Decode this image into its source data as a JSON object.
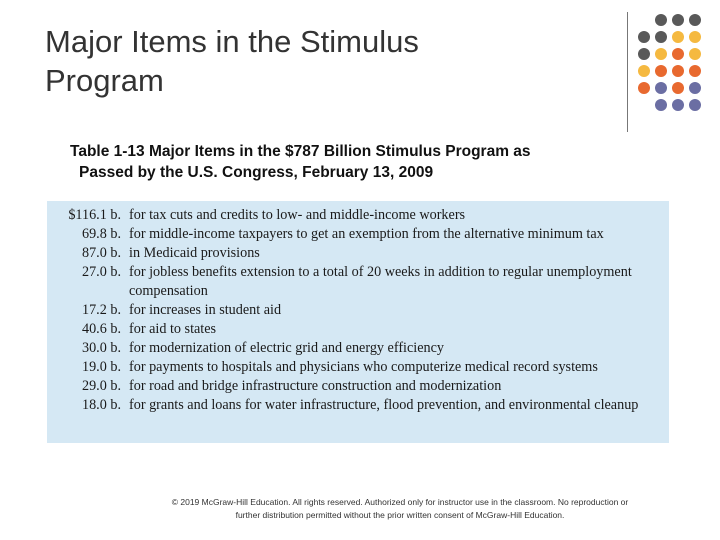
{
  "slide": {
    "title_line1": "Major Items in the Stimulus",
    "title_line2": "Program"
  },
  "decor": {
    "dot_colors": {
      "gray": "#595959",
      "yellow": "#f5b940",
      "orange": "#e8692f",
      "purple": "#6b6ea3"
    }
  },
  "table": {
    "caption_line1": "Table 1-13 Major Items in the $787 Billion Stimulus Program as",
    "caption_line2": "Passed by the U.S. Congress, February 13, 2009",
    "rows": [
      {
        "amount": "$116.1 b.",
        "description": "for tax cuts and credits to low- and middle-income workers"
      },
      {
        "amount": "69.8 b.",
        "description": "for middle-income taxpayers to get an exemption from the alternative minimum tax"
      },
      {
        "amount": "87.0 b.",
        "description": "in Medicaid provisions"
      },
      {
        "amount": "27.0 b.",
        "description": "for jobless benefits extension to a total of 20 weeks in addition to regular unemployment compensation"
      },
      {
        "amount": "17.2 b.",
        "description": "for increases in student aid"
      },
      {
        "amount": "40.6 b.",
        "description": "for aid to states"
      },
      {
        "amount": "30.0 b.",
        "description": "for modernization of electric grid and energy efficiency"
      },
      {
        "amount": "19.0 b.",
        "description": "for payments to hospitals and physicians who computerize medical record systems"
      },
      {
        "amount": "29.0 b.",
        "description": "for road and bridge infrastructure construction and modernization"
      },
      {
        "amount": "18.0 b.",
        "description": "for grants and loans for water infrastructure, flood prevention, and environmental cleanup"
      }
    ]
  },
  "footer": {
    "copyright": "© 2019 McGraw-Hill Education. All rights reserved. Authorized only for instructor use in the classroom. No reproduction or further distribution permitted without the prior written consent of McGraw-Hill Education."
  }
}
